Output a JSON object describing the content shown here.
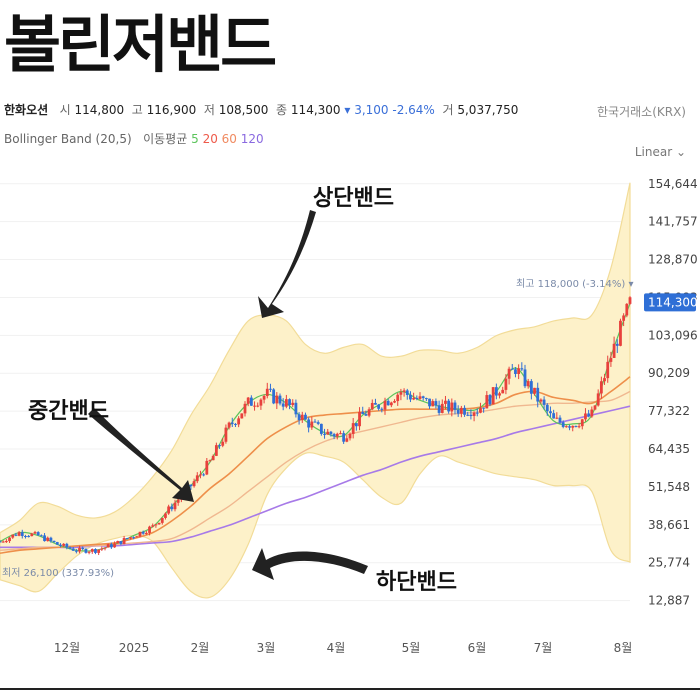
{
  "page_title": "볼린저밴드",
  "stock": {
    "name": "한화오션",
    "open_label": "시",
    "open": "114,800",
    "high_label": "고",
    "high": "116,900",
    "low_label": "저",
    "low": "108,500",
    "close_label": "종",
    "close": "114,300",
    "change": "▾ 3,100 -2.64%",
    "volume_label": "거",
    "volume": "5,037,750",
    "exchange": "한국거래소(KRX)"
  },
  "indicators": {
    "bollinger": "Bollinger Band (20,5)",
    "ma_label": "이동평균",
    "ma5": "5",
    "ma20": "20",
    "ma60": "60",
    "ma120": "120"
  },
  "scale_mode": "Linear ⌄",
  "annotations": {
    "upper": "상단밴드",
    "middle": "중간밴드",
    "lower": "하단밴드",
    "high_marker": "최고 118,000 (-3.14%) ▾",
    "low_marker": "최저 26,100 (337.93%)"
  },
  "colors": {
    "band_fill": "#fdf1c9",
    "band_line": "#f2dc98",
    "ma5": "#5cc45c",
    "ma20": "#ee8f4a",
    "ma60": "#f0b890",
    "ma120": "#a77ae8",
    "up": "#e8413c",
    "down": "#2f6fd6",
    "price_tag": "#2f6fd6"
  },
  "chart_data": {
    "type": "line",
    "title": "",
    "xlabel": "",
    "ylabel": "",
    "y_ticks": [
      "154,644",
      "141,757",
      "128,870",
      "115,983",
      "103,096",
      "90,209",
      "77,322",
      "64,435",
      "51,548",
      "38,661",
      "25,774",
      "12,887"
    ],
    "y_tick_values": [
      154644,
      141757,
      128870,
      115983,
      103096,
      90209,
      77322,
      64435,
      51548,
      38661,
      25774,
      12887
    ],
    "ylim": [
      8000,
      160000
    ],
    "x_ticks": [
      "12월",
      "2025",
      "2월",
      "3월",
      "4월",
      "5월",
      "6월",
      "7월",
      "8월"
    ],
    "last_price": "114,300",
    "last_price_value": 114300,
    "highest": 118000,
    "lowest": 26100,
    "series": [
      {
        "key": "upper",
        "values": [
          36000,
          40000,
          46000,
          45000,
          42000,
          41000,
          43000,
          48000,
          55000,
          64000,
          76000,
          86000,
          98000,
          108000,
          110000,
          108000,
          100000,
          97000,
          99000,
          100000,
          96000,
          96000,
          98000,
          98000,
          97000,
          99000,
          103000,
          105000,
          106000,
          108000,
          109000,
          110000,
          126000,
          155000
        ]
      },
      {
        "key": "lower",
        "values": [
          20000,
          18000,
          16000,
          22000,
          28000,
          32000,
          34000,
          35000,
          33000,
          24000,
          16000,
          14000,
          20000,
          32000,
          49000,
          58000,
          63000,
          62000,
          60000,
          54000,
          48000,
          46000,
          56000,
          62000,
          60000,
          58000,
          56000,
          55000,
          54000,
          52000,
          52000,
          50000,
          30000,
          26000
        ]
      },
      {
        "key": "ma20",
        "values": [
          29000,
          30000,
          30500,
          31000,
          31500,
          32000,
          32500,
          34000,
          36000,
          40000,
          45000,
          51000,
          56000,
          62000,
          68000,
          72000,
          75000,
          76000,
          76500,
          77000,
          77500,
          78000,
          78000,
          78000,
          78000,
          78500,
          80000,
          83000,
          84000,
          82000,
          81000,
          80000,
          84000,
          89000
        ]
      },
      {
        "key": "ma60",
        "values": [
          30000,
          30500,
          31000,
          31000,
          31500,
          31500,
          32000,
          32500,
          33000,
          34000,
          37000,
          41000,
          45000,
          50000,
          55000,
          60000,
          64000,
          67000,
          69000,
          70500,
          72000,
          73500,
          75000,
          76000,
          76500,
          77000,
          78000,
          79000,
          79500,
          80000,
          80000,
          80500,
          81000,
          84000
        ]
      },
      {
        "key": "ma120",
        "values": [
          31000,
          31000,
          31000,
          31000,
          31000,
          31500,
          31500,
          32000,
          32500,
          33000,
          34500,
          36500,
          38500,
          41000,
          43500,
          46000,
          48000,
          50500,
          53000,
          55500,
          57500,
          60000,
          62000,
          63500,
          65000,
          66500,
          68000,
          70000,
          71500,
          73000,
          74500,
          76000,
          77500,
          79000
        ]
      },
      {
        "key": "ma5",
        "values": [
          33000,
          36000,
          35000,
          32000,
          30000,
          30000,
          32000,
          35000,
          38000,
          45000,
          52000,
          60000,
          72000,
          80000,
          83000,
          80000,
          74000,
          70000,
          69000,
          76000,
          80000,
          84000,
          81000,
          79000,
          78000,
          78000,
          84000,
          92000,
          83000,
          74000,
          73000,
          76000,
          96000,
          114000
        ]
      }
    ]
  }
}
